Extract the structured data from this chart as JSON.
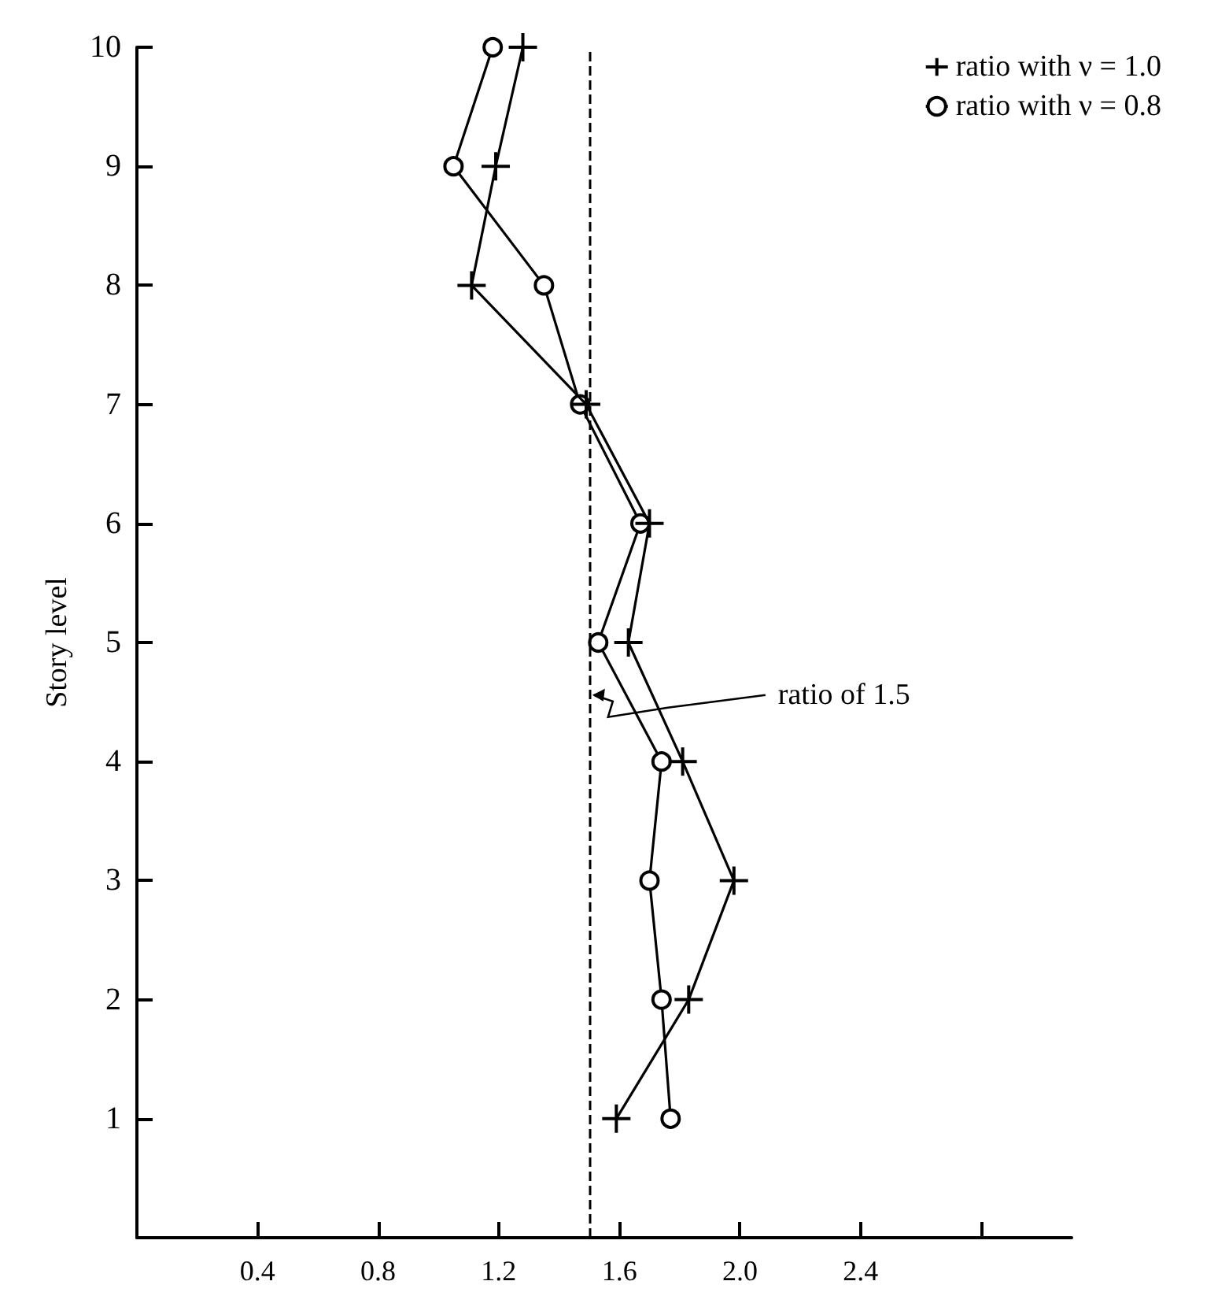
{
  "chart_data": {
    "type": "line",
    "ylabel": "Story level",
    "series": [
      {
        "name": "ratio with ν = 1.0",
        "color": "#000000",
        "marker": "cross",
        "x": [
          1.59,
          1.83,
          1.98,
          1.81,
          1.63,
          1.7,
          1.49,
          1.11,
          1.19,
          1.28
        ],
        "values": [
          1,
          2,
          3,
          4,
          5,
          6,
          7,
          8,
          9,
          10
        ]
      },
      {
        "name": "ratio with ν = 0.8",
        "color": "#000000",
        "marker": "circle",
        "x": [
          1.77,
          1.74,
          1.7,
          1.74,
          1.53,
          1.67,
          1.47,
          1.35,
          1.05,
          1.18
        ],
        "values": [
          1,
          2,
          3,
          4,
          5,
          6,
          7,
          8,
          9,
          10
        ]
      }
    ],
    "xlim": [
      0,
      3.1
    ],
    "xticks": [
      0.4,
      0.8,
      1.2,
      1.6,
      {
        "value": 2,
        "label": "2.0"
      },
      2.4,
      {
        "value": 2.8,
        "label": null
      }
    ],
    "ylim": [
      0,
      10
    ],
    "yticks": [
      1,
      2,
      3,
      4,
      5,
      6,
      7,
      8,
      9,
      10
    ],
    "ref_lines": [
      {
        "axis": "x",
        "value": 1.5,
        "label": "ratio of 1.5",
        "line_style": "dashed",
        "color": "#000000"
      }
    ],
    "legend": "top right",
    "grid": false,
    "line_style": "solid"
  }
}
